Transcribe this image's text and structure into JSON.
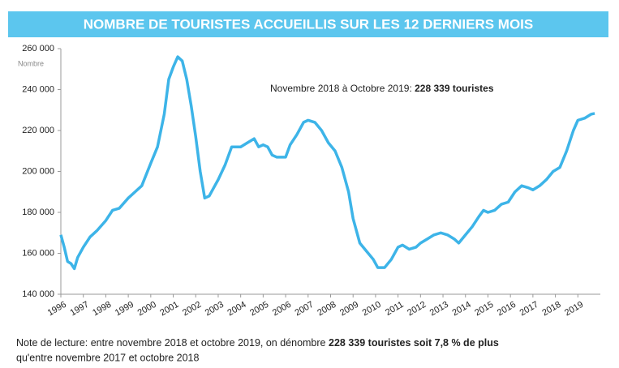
{
  "chart_data": {
    "type": "line",
    "title": "NOMBRE DE TOURISTES ACCUEILLIS SUR LES 12 DERNIERS MOIS",
    "y_label": "Nombre",
    "annotation": "Novembre 2018 à Octobre 2019:",
    "annotation_bold": "228 339 touristes",
    "note": "Note de lecture: entre novembre 2018 et octobre 2019, on dénombre",
    "note_bold": "228 339 touristes soit 7,8 % de plus",
    "note_end": "qu'entre novembre 2017 et octobre 2018",
    "x": [
      1996.0,
      1996.15,
      1996.3,
      1996.45,
      1996.6,
      1996.75,
      1997.0,
      1997.3,
      1997.6,
      1998.0,
      1998.3,
      1998.6,
      1999.0,
      1999.3,
      1999.6,
      2000.0,
      2000.3,
      2000.6,
      2000.8,
      2001.0,
      2001.2,
      2001.4,
      2001.6,
      2001.8,
      2002.0,
      2002.2,
      2002.4,
      2002.6,
      2002.8,
      2003.0,
      2003.3,
      2003.6,
      2004.0,
      2004.3,
      2004.6,
      2004.8,
      2005.0,
      2005.2,
      2005.4,
      2005.6,
      2005.8,
      2006.0,
      2006.2,
      2006.5,
      2006.8,
      2007.0,
      2007.3,
      2007.6,
      2007.9,
      2008.2,
      2008.5,
      2008.8,
      2009.0,
      2009.3,
      2009.6,
      2009.9,
      2010.1,
      2010.4,
      2010.7,
      2011.0,
      2011.2,
      2011.5,
      2011.8,
      2012.0,
      2012.3,
      2012.6,
      2012.9,
      2013.2,
      2013.5,
      2013.7,
      2014.0,
      2014.3,
      2014.6,
      2014.8,
      2015.0,
      2015.3,
      2015.6,
      2015.9,
      2016.2,
      2016.5,
      2016.8,
      2017.0,
      2017.3,
      2017.6,
      2017.9,
      2018.2,
      2018.5,
      2018.8,
      2019.0,
      2019.3,
      2019.6,
      2019.75
    ],
    "series": [
      {
        "name": "Nombre de touristes",
        "color": "#3db4e8",
        "values": [
          169000,
          163000,
          156000,
          155000,
          152500,
          158000,
          163000,
          168000,
          171000,
          176000,
          181000,
          182000,
          187000,
          190000,
          193000,
          204000,
          212000,
          228000,
          245000,
          251000,
          256000,
          254000,
          245000,
          232000,
          217000,
          200000,
          187000,
          188000,
          192000,
          196000,
          203000,
          212000,
          212000,
          214000,
          216000,
          212000,
          213000,
          212000,
          208000,
          207000,
          207000,
          207000,
          213000,
          218000,
          224000,
          225000,
          224000,
          220000,
          214000,
          210000,
          202000,
          190000,
          177000,
          165000,
          161000,
          157000,
          153000,
          153000,
          157000,
          163000,
          164000,
          162000,
          163000,
          165000,
          167000,
          169000,
          170000,
          169000,
          167000,
          165000,
          169000,
          173000,
          178000,
          181000,
          180000,
          181000,
          184000,
          185000,
          190000,
          193000,
          192000,
          191000,
          193000,
          196000,
          200000,
          202000,
          210000,
          220000,
          225000,
          226000,
          228000,
          228339
        ]
      }
    ],
    "xlim": [
      1996,
      2020
    ],
    "xticks": [
      1996,
      1997,
      1998,
      1999,
      2000,
      2001,
      2002,
      2003,
      2004,
      2005,
      2006,
      2007,
      2008,
      2009,
      2010,
      2011,
      2012,
      2013,
      2014,
      2015,
      2016,
      2017,
      2018,
      2019
    ],
    "ylim": [
      140000,
      260000
    ],
    "yticks": [
      {
        "value": 140000,
        "label": "140 000"
      },
      {
        "value": 160000,
        "label": "160 000"
      },
      {
        "value": 180000,
        "label": "180 000"
      },
      {
        "value": 200000,
        "label": "200 000"
      },
      {
        "value": 220000,
        "label": "220 000"
      },
      {
        "value": 240000,
        "label": "240 000"
      },
      {
        "value": 260000,
        "label": "260 000"
      }
    ],
    "grid": false
  }
}
